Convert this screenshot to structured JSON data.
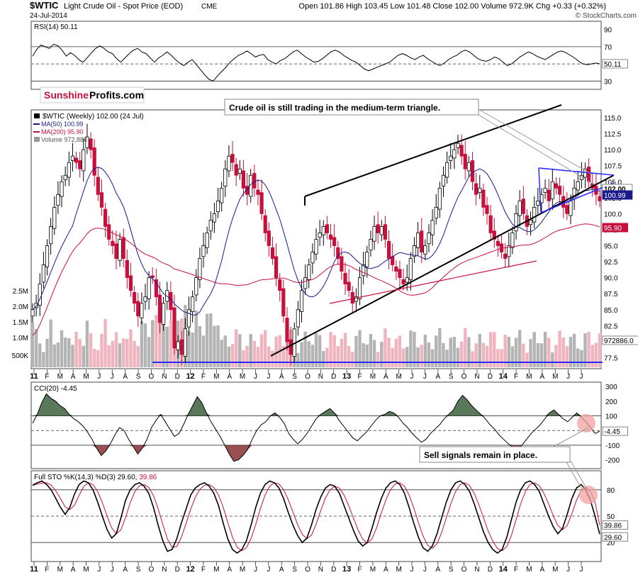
{
  "header": {
    "symbol": "$WTIC",
    "name": "Light Crude Oil - Spot Price (EOD)",
    "exchange": "CME",
    "date": "24-Jul-2014",
    "quote": "Open 101.86  High 103.45  Low 101.48  Close 102.00  Volume 972.9K  Chg +0.33 (+0.32%)",
    "watermark": "© StockCharts.com",
    "brand_a": "Sunshine",
    "brand_b": "Profits.com"
  },
  "annotations": {
    "triangle": "Crude oil is still trading in the medium-term triangle.",
    "sell": "Sell signals remain in place."
  },
  "colors": {
    "up": "#000000",
    "down": "#c8103c",
    "ma50": "#1a1a8c",
    "ma200": "#c8103c",
    "vol_up": "#b4b4b4",
    "vol_down": "#f0b4be",
    "cci_pos": "#5a785a",
    "cci_neg": "#9a5050",
    "trend_blue": "#2a2aff",
    "circle": "#f0a0a0"
  },
  "chart_data": [
    {
      "type": "line",
      "panel": "RSI",
      "legend": "RSI(14) 50.11",
      "last_label": "50.11",
      "y_ticks": [
        30,
        50,
        70,
        90
      ],
      "ylim": [
        22,
        98
      ],
      "reference_lines": [
        30,
        50,
        70
      ],
      "values": [
        59,
        67,
        72,
        70,
        68,
        73,
        71,
        66,
        59,
        63,
        60,
        55,
        52,
        57,
        63,
        68,
        71,
        68,
        64,
        62,
        56,
        52,
        57,
        62,
        66,
        68,
        64,
        62,
        57,
        52,
        57,
        60,
        64,
        60,
        55,
        51,
        48,
        52,
        55,
        49,
        43,
        37,
        32,
        30,
        36,
        41,
        46,
        52,
        56,
        60,
        62,
        65,
        62,
        58,
        60,
        61,
        55,
        52,
        50,
        54,
        56,
        60,
        64,
        66,
        62,
        58,
        55,
        52,
        53,
        56,
        60,
        64,
        66,
        64,
        60,
        57,
        54,
        52,
        48,
        44,
        42,
        44,
        46,
        48,
        50,
        52,
        56,
        60,
        62,
        60,
        57,
        55,
        58,
        60,
        56,
        53,
        50,
        48,
        51,
        55,
        58,
        60,
        64,
        66,
        64,
        60,
        56,
        54,
        53,
        55,
        58,
        56,
        52,
        48,
        50,
        54,
        58,
        61,
        64,
        62,
        59,
        57,
        55,
        58,
        61,
        64,
        65,
        63,
        60,
        57,
        53,
        50,
        49,
        50,
        51,
        50.11
      ]
    },
    {
      "type": "candlestick",
      "panel": "Price",
      "legend": "$WTIC (Weekly) 102.00 (24 Jul)",
      "ma50_legend": "MA(50) 100.99",
      "ma200_legend": "MA(200) 95.90",
      "volume_legend": "Volume 972,886",
      "y_ticks": [
        77.5,
        80.0,
        82.5,
        85.0,
        87.5,
        90.0,
        92.5,
        95.0,
        97.5,
        100.0,
        102.5,
        105.0,
        107.5,
        110.0,
        112.5,
        115.0
      ],
      "ylim": [
        76,
        116
      ],
      "last_close_label": "102.00",
      "ma50_label": "100.99",
      "ma200_label": "95.90",
      "volume_label": "972886.0",
      "volume_ticks": [
        "500K",
        "1.0M",
        "1.5M",
        "2.0M",
        "2.5M"
      ],
      "closes": [
        85,
        86,
        89,
        92,
        95,
        98,
        101,
        103,
        105,
        106,
        108,
        109,
        108,
        107,
        110,
        112,
        110,
        106,
        103,
        101,
        98,
        96,
        95,
        93,
        96,
        93,
        90,
        88,
        86,
        84,
        86,
        87,
        90,
        90,
        87,
        83,
        86,
        88,
        85,
        79,
        80,
        78,
        82,
        85,
        87,
        90,
        93,
        95,
        97,
        99,
        100,
        102,
        104,
        107,
        109,
        108,
        106,
        107,
        104,
        103,
        106,
        104,
        103,
        100,
        97,
        95,
        93,
        90,
        88,
        84,
        80,
        78,
        82,
        85,
        88,
        90,
        92,
        94,
        96,
        97,
        98,
        97,
        96,
        95,
        93,
        91,
        89,
        88,
        86,
        87,
        90,
        92,
        94,
        96,
        98,
        97,
        98,
        96,
        93,
        92,
        91,
        90,
        89,
        90,
        93,
        95,
        97,
        94,
        95,
        97,
        99,
        101,
        104,
        106,
        108,
        109,
        110,
        111,
        109,
        107,
        108,
        105,
        103,
        104,
        101,
        100,
        97,
        96,
        95,
        94,
        93,
        95,
        97,
        100,
        102,
        100,
        98,
        99,
        101,
        102,
        103,
        104,
        102,
        105,
        104,
        103,
        101,
        100,
        102,
        104,
        105,
        106,
        107,
        105,
        104,
        103,
        102
      ]
    },
    {
      "type": "line",
      "panel": "CCI",
      "legend": "CCI(20) -4.45",
      "last_label": "-4.45",
      "y_ticks": [
        -200,
        -100,
        100,
        200,
        300
      ],
      "ylim": [
        -250,
        320
      ],
      "reference_lines": [
        -100,
        0,
        100
      ],
      "values": [
        50,
        110,
        190,
        250,
        220,
        200,
        170,
        150,
        110,
        80,
        60,
        30,
        -10,
        -60,
        -120,
        -170,
        -140,
        -90,
        -30,
        20,
        0,
        -60,
        -110,
        -160,
        -120,
        -60,
        20,
        70,
        110,
        60,
        10,
        -40,
        -20,
        40,
        110,
        170,
        230,
        190,
        120,
        60,
        10,
        -40,
        -100,
        -160,
        -210,
        -200,
        -170,
        -130,
        -60,
        0,
        40,
        60,
        100,
        120,
        90,
        50,
        -20,
        -60,
        -90,
        -60,
        -20,
        30,
        80,
        110,
        130,
        150,
        120,
        70,
        30,
        -10,
        -50,
        -70,
        -40,
        -10,
        30,
        70,
        100,
        110,
        130,
        120,
        90,
        50,
        20,
        -20,
        -50,
        -80,
        -60,
        -20,
        10,
        40,
        80,
        110,
        140,
        200,
        240,
        210,
        170,
        140,
        110,
        80,
        40,
        10,
        -30,
        -60,
        -90,
        -110,
        -120,
        -100,
        -60,
        -20,
        10,
        40,
        80,
        120,
        140,
        110,
        80,
        60,
        90,
        120,
        90,
        60,
        20,
        -20,
        -4.45
      ]
    },
    {
      "type": "line",
      "panel": "Full STO",
      "legend_prefix": "Full STO %K(14,3) %D(3) 29.60, ",
      "legend_d": "39.86",
      "k_label": "29.60",
      "d_label": "39.86",
      "y_ticks": [
        20,
        50,
        80
      ],
      "ylim": [
        0,
        100
      ],
      "reference_lines": [
        20,
        50,
        80
      ],
      "k": [
        85,
        88,
        90,
        86,
        80,
        70,
        60,
        52,
        60,
        75,
        86,
        90,
        88,
        80,
        66,
        50,
        35,
        25,
        30,
        48,
        68,
        80,
        86,
        88,
        84,
        76,
        60,
        40,
        22,
        10,
        12,
        24,
        42,
        58,
        74,
        82,
        86,
        88,
        84,
        76,
        62,
        42,
        24,
        12,
        8,
        12,
        22,
        40,
        60,
        76,
        86,
        90,
        88,
        82,
        70,
        54,
        40,
        28,
        20,
        25,
        40,
        58,
        72,
        82,
        86,
        84,
        76,
        62,
        48,
        34,
        22,
        16,
        20,
        36,
        54,
        70,
        82,
        88,
        90,
        86,
        76,
        60,
        42,
        26,
        14,
        10,
        16,
        30,
        48,
        66,
        80,
        88,
        90,
        86,
        78,
        64,
        48,
        32,
        20,
        12,
        8,
        12,
        26,
        46,
        66,
        80,
        88,
        90,
        86,
        78,
        64,
        50,
        38,
        30,
        36,
        52,
        70,
        82,
        86,
        80,
        68,
        50,
        29.6
      ]
    }
  ],
  "x_axis": {
    "labels": [
      "11",
      "F",
      "M",
      "A",
      "M",
      "J",
      "J",
      "A",
      "S",
      "O",
      "N",
      "D",
      "12",
      "F",
      "M",
      "A",
      "M",
      "J",
      "J",
      "A",
      "S",
      "O",
      "N",
      "D",
      "13",
      "F",
      "M",
      "A",
      "M",
      "J",
      "J",
      "A",
      "S",
      "O",
      "N",
      "D",
      "14",
      "F",
      "M",
      "A",
      "M",
      "J",
      "J"
    ],
    "bold": [
      "11",
      "12",
      "13",
      "14"
    ]
  }
}
